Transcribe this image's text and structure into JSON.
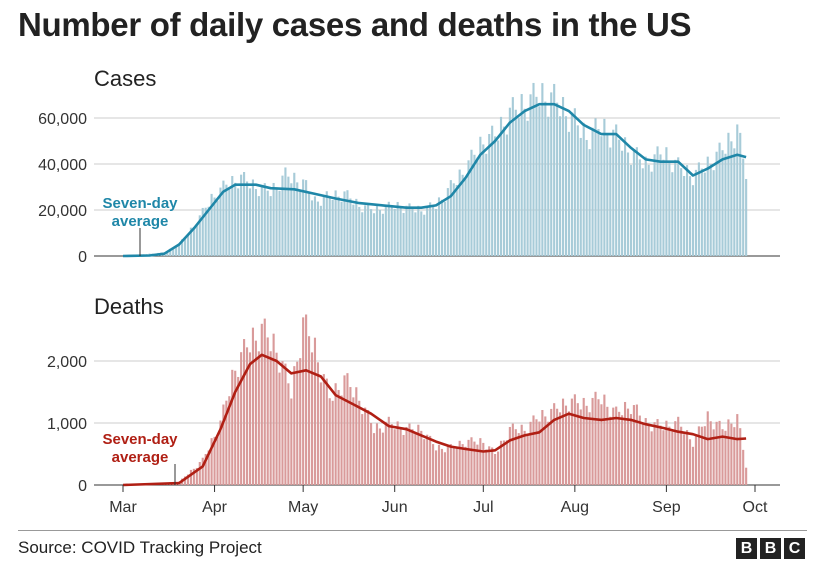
{
  "title": "Number of daily cases and deaths in the US",
  "source": "Source: COVID Tracking Project",
  "logo_letters": [
    "B",
    "B",
    "C"
  ],
  "colors": {
    "cases_bar": "#a7cbd8",
    "cases_line": "#1f87a8",
    "deaths_bar": "#d99a9a",
    "deaths_line": "#b01f14",
    "grid": "#cccccc"
  },
  "x_axis": {
    "ticks": [
      {
        "label": "Mar",
        "date": "2020-03-01"
      },
      {
        "label": "Apr",
        "date": "2020-04-01"
      },
      {
        "label": "May",
        "date": "2020-05-01"
      },
      {
        "label": "Jun",
        "date": "2020-06-01"
      },
      {
        "label": "Jul",
        "date": "2020-07-01"
      },
      {
        "label": "Aug",
        "date": "2020-08-01"
      },
      {
        "label": "Sep",
        "date": "2020-09-01"
      },
      {
        "label": "Oct",
        "date": "2020-10-01"
      }
    ]
  },
  "chart_data": [
    {
      "type": "bar",
      "title": "Cases",
      "annotation": "Seven-day\naverage",
      "x_range": [
        "2020-03-01",
        "2020-10-01"
      ],
      "ylim": [
        0,
        70000
      ],
      "yticks": [
        {
          "value": 0,
          "label": "0"
        },
        {
          "value": 20000,
          "label": "20,000"
        },
        {
          "value": 40000,
          "label": "40,000"
        },
        {
          "value": 60000,
          "label": "60,000"
        }
      ],
      "grid": true,
      "seven_day_average": [
        [
          "2020-03-01",
          0
        ],
        [
          "2020-03-10",
          200
        ],
        [
          "2020-03-15",
          1000
        ],
        [
          "2020-03-20",
          5000
        ],
        [
          "2020-03-25",
          12000
        ],
        [
          "2020-03-30",
          20000
        ],
        [
          "2020-04-04",
          28000
        ],
        [
          "2020-04-08",
          31000
        ],
        [
          "2020-04-15",
          31000
        ],
        [
          "2020-04-20",
          29500
        ],
        [
          "2020-04-28",
          29000
        ],
        [
          "2020-05-05",
          27000
        ],
        [
          "2020-05-12",
          25000
        ],
        [
          "2020-05-20",
          23000
        ],
        [
          "2020-05-28",
          22000
        ],
        [
          "2020-06-05",
          21000
        ],
        [
          "2020-06-10",
          21000
        ],
        [
          "2020-06-15",
          22000
        ],
        [
          "2020-06-20",
          26000
        ],
        [
          "2020-06-25",
          34000
        ],
        [
          "2020-06-30",
          44000
        ],
        [
          "2020-07-05",
          50000
        ],
        [
          "2020-07-10",
          58000
        ],
        [
          "2020-07-15",
          63000
        ],
        [
          "2020-07-20",
          66000
        ],
        [
          "2020-07-25",
          66000
        ],
        [
          "2020-07-30",
          63000
        ],
        [
          "2020-08-04",
          57000
        ],
        [
          "2020-08-10",
          53000
        ],
        [
          "2020-08-15",
          53000
        ],
        [
          "2020-08-20",
          47000
        ],
        [
          "2020-08-25",
          42000
        ],
        [
          "2020-08-30",
          41000
        ],
        [
          "2020-09-05",
          41000
        ],
        [
          "2020-09-10",
          35000
        ],
        [
          "2020-09-15",
          38000
        ],
        [
          "2020-09-20",
          42000
        ],
        [
          "2020-09-25",
          44000
        ],
        [
          "2020-09-28",
          43000
        ]
      ],
      "daily": [
        [
          "2020-03-01",
          0
        ],
        [
          "2020-03-15",
          1500
        ],
        [
          "2020-03-20",
          5000
        ],
        [
          "2020-03-25",
          13000
        ],
        [
          "2020-03-31",
          25000
        ],
        [
          "2020-04-05",
          31000
        ],
        [
          "2020-04-10",
          34000
        ],
        [
          "2020-04-15",
          30000
        ],
        [
          "2020-04-20",
          28000
        ],
        [
          "2020-04-25",
          35000
        ],
        [
          "2020-05-01",
          32000
        ],
        [
          "2020-05-05",
          24000
        ],
        [
          "2020-05-10",
          26000
        ],
        [
          "2020-05-15",
          27000
        ],
        [
          "2020-05-20",
          22000
        ],
        [
          "2020-05-25",
          20000
        ],
        [
          "2020-06-01",
          22000
        ],
        [
          "2020-06-05",
          21000
        ],
        [
          "2020-06-10",
          20000
        ],
        [
          "2020-06-15",
          22000
        ],
        [
          "2020-06-20",
          30000
        ],
        [
          "2020-06-25",
          38000
        ],
        [
          "2020-07-01",
          50000
        ],
        [
          "2020-07-05",
          52000
        ],
        [
          "2020-07-10",
          62000
        ],
        [
          "2020-07-15",
          66000
        ],
        [
          "2020-07-20",
          70000
        ],
        [
          "2020-07-25",
          68000
        ],
        [
          "2020-07-31",
          60000
        ],
        [
          "2020-08-05",
          52000
        ],
        [
          "2020-08-10",
          56000
        ],
        [
          "2020-08-15",
          52000
        ],
        [
          "2020-08-20",
          45000
        ],
        [
          "2020-08-25",
          40000
        ],
        [
          "2020-08-31",
          45000
        ],
        [
          "2020-09-05",
          39000
        ],
        [
          "2020-09-10",
          35000
        ],
        [
          "2020-09-15",
          40000
        ],
        [
          "2020-09-20",
          46000
        ],
        [
          "2020-09-25",
          55000
        ],
        [
          "2020-09-28",
          36000
        ]
      ]
    },
    {
      "type": "bar",
      "title": "Deaths",
      "annotation": "Seven-day\naverage",
      "x_range": [
        "2020-03-01",
        "2020-10-01"
      ],
      "ylim": [
        0,
        2500
      ],
      "yticks": [
        {
          "value": 0,
          "label": "0"
        },
        {
          "value": 1000,
          "label": "1,000"
        },
        {
          "value": 2000,
          "label": "2,000"
        }
      ],
      "grid": true,
      "seven_day_average": [
        [
          "2020-03-01",
          0
        ],
        [
          "2020-03-20",
          30
        ],
        [
          "2020-03-28",
          300
        ],
        [
          "2020-04-03",
          900
        ],
        [
          "2020-04-08",
          1500
        ],
        [
          "2020-04-13",
          1950
        ],
        [
          "2020-04-17",
          2100
        ],
        [
          "2020-04-22",
          2000
        ],
        [
          "2020-04-27",
          1800
        ],
        [
          "2020-05-02",
          1850
        ],
        [
          "2020-05-07",
          1750
        ],
        [
          "2020-05-12",
          1450
        ],
        [
          "2020-05-18",
          1300
        ],
        [
          "2020-05-24",
          1150
        ],
        [
          "2020-05-30",
          950
        ],
        [
          "2020-06-05",
          900
        ],
        [
          "2020-06-10",
          800
        ],
        [
          "2020-06-15",
          700
        ],
        [
          "2020-06-20",
          620
        ],
        [
          "2020-06-25",
          580
        ],
        [
          "2020-07-01",
          540
        ],
        [
          "2020-07-05",
          560
        ],
        [
          "2020-07-10",
          720
        ],
        [
          "2020-07-15",
          800
        ],
        [
          "2020-07-20",
          850
        ],
        [
          "2020-07-25",
          1050
        ],
        [
          "2020-07-30",
          1150
        ],
        [
          "2020-08-04",
          1080
        ],
        [
          "2020-08-10",
          1050
        ],
        [
          "2020-08-15",
          1080
        ],
        [
          "2020-08-20",
          1050
        ],
        [
          "2020-08-25",
          980
        ],
        [
          "2020-08-31",
          920
        ],
        [
          "2020-09-05",
          860
        ],
        [
          "2020-09-10",
          820
        ],
        [
          "2020-09-15",
          740
        ],
        [
          "2020-09-20",
          780
        ],
        [
          "2020-09-25",
          740
        ],
        [
          "2020-09-28",
          750
        ]
      ],
      "daily": [
        [
          "2020-03-01",
          0
        ],
        [
          "2020-03-20",
          50
        ],
        [
          "2020-03-28",
          400
        ],
        [
          "2020-04-03",
          1000
        ],
        [
          "2020-04-08",
          1900
        ],
        [
          "2020-04-13",
          2300
        ],
        [
          "2020-04-17",
          2500
        ],
        [
          "2020-04-22",
          2200
        ],
        [
          "2020-04-27",
          1500
        ],
        [
          "2020-05-01",
          2600
        ],
        [
          "2020-05-05",
          2200
        ],
        [
          "2020-05-10",
          1400
        ],
        [
          "2020-05-15",
          1700
        ],
        [
          "2020-05-20",
          1400
        ],
        [
          "2020-05-25",
          900
        ],
        [
          "2020-05-30",
          1000
        ],
        [
          "2020-06-05",
          900
        ],
        [
          "2020-06-10",
          900
        ],
        [
          "2020-06-15",
          600
        ],
        [
          "2020-06-20",
          600
        ],
        [
          "2020-06-25",
          700
        ],
        [
          "2020-07-01",
          700
        ],
        [
          "2020-07-05",
          500
        ],
        [
          "2020-07-10",
          900
        ],
        [
          "2020-07-15",
          900
        ],
        [
          "2020-07-20",
          1100
        ],
        [
          "2020-07-25",
          1200
        ],
        [
          "2020-07-30",
          1350
        ],
        [
          "2020-08-04",
          1300
        ],
        [
          "2020-08-10",
          1400
        ],
        [
          "2020-08-15",
          1150
        ],
        [
          "2020-08-20",
          1300
        ],
        [
          "2020-08-25",
          1000
        ],
        [
          "2020-08-31",
          950
        ],
        [
          "2020-09-05",
          1000
        ],
        [
          "2020-09-10",
          700
        ],
        [
          "2020-09-15",
          1100
        ],
        [
          "2020-09-20",
          900
        ],
        [
          "2020-09-25",
          1100
        ],
        [
          "2020-09-28",
          300
        ]
      ]
    }
  ]
}
